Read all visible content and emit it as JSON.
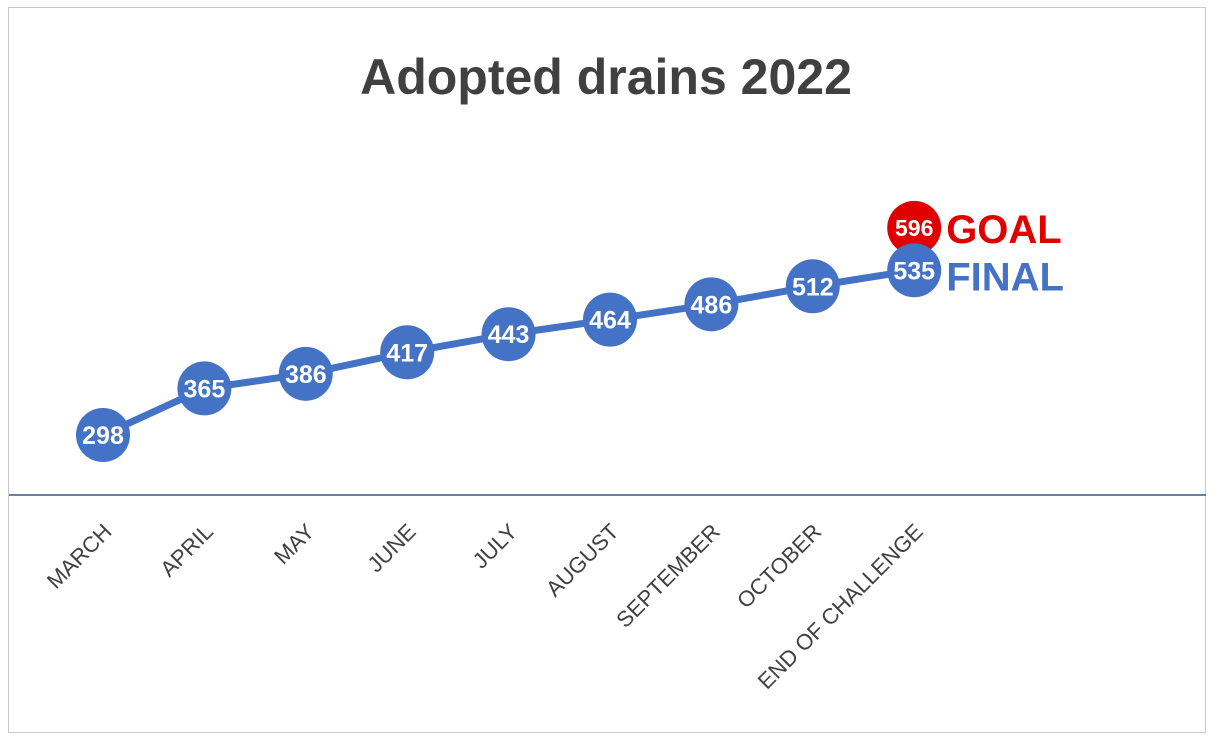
{
  "chart_data": {
    "type": "line",
    "title": "Adopted drains 2022",
    "categories": [
      "MARCH",
      "APRIL",
      "MAY",
      "JUNE",
      "JULY",
      "AUGUST",
      "SEPTEMBER",
      "OCTOBER",
      "END OF CHALLENGE"
    ],
    "series": [
      {
        "name": "FINAL",
        "values": [
          298,
          365,
          386,
          417,
          443,
          464,
          486,
          512,
          535
        ],
        "color": "#4472C4"
      },
      {
        "name": "GOAL",
        "values": [
          null,
          null,
          null,
          null,
          null,
          null,
          null,
          null,
          596
        ],
        "color": "#E00000"
      }
    ],
    "xlabel": "",
    "ylabel": "",
    "grid": false,
    "data_labels": true
  }
}
